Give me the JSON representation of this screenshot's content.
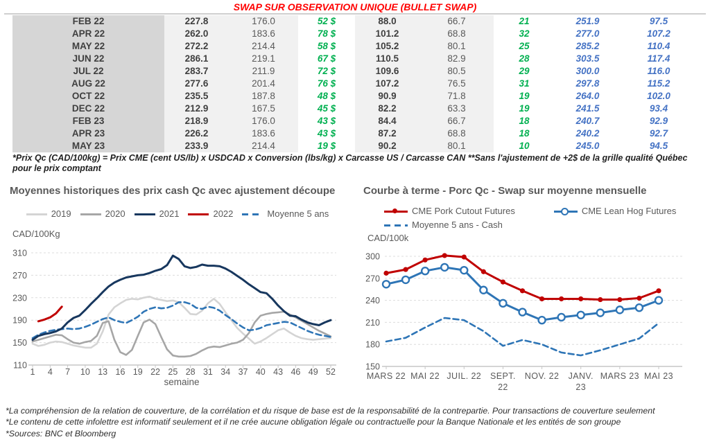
{
  "title": "SWAP SUR OBSERVATION UNIQUE (BULLET SWAP)",
  "table": {
    "rows": [
      [
        "FEB 22",
        "227.8",
        "176.0",
        "52 $",
        "88.0",
        "66.7",
        "21",
        "251.9",
        "97.5"
      ],
      [
        "APR 22",
        "262.0",
        "183.6",
        "78 $",
        "101.2",
        "68.8",
        "32",
        "277.0",
        "107.2"
      ],
      [
        "MAY 22",
        "272.2",
        "214.4",
        "58 $",
        "105.2",
        "80.1",
        "25",
        "285.2",
        "110.4"
      ],
      [
        "JUN 22",
        "286.1",
        "219.1",
        "67 $",
        "110.5",
        "82.9",
        "28",
        "303.5",
        "117.4"
      ],
      [
        "JUL 22",
        "283.7",
        "211.9",
        "72 $",
        "109.6",
        "80.5",
        "29",
        "300.0",
        "116.0"
      ],
      [
        "AUG 22",
        "277.6",
        "201.4",
        "76 $",
        "107.2",
        "76.5",
        "31",
        "297.8",
        "115.2"
      ],
      [
        "OCT 22",
        "235.5",
        "187.8",
        "48 $",
        "90.9",
        "71.8",
        "19",
        "264.0",
        "102.0"
      ],
      [
        "DEC 22",
        "212.9",
        "167.5",
        "45 $",
        "82.2",
        "63.3",
        "19",
        "241.5",
        "93.4"
      ],
      [
        "FEB 23",
        "218.9",
        "176.0",
        "43 $",
        "84.4",
        "66.7",
        "18",
        "240.7",
        "92.9"
      ],
      [
        "APR 23",
        "226.2",
        "183.6",
        "43 $",
        "87.2",
        "68.8",
        "18",
        "240.2",
        "92.7"
      ],
      [
        "MAY 23",
        "233.9",
        "214.4",
        "19 $",
        "90.2",
        "80.1",
        "10",
        "245.0",
        "94.5"
      ]
    ],
    "footnote": "*Prix Qc (CAD/100kg) = Prix CME (cent US/lb) x USDCAD x Conversion (lbs/kg) x Carcasse US / Carcasse CAN **Sans l'ajustement de +2$ de la grille qualité Québec pour le prix comptant"
  },
  "chart_data": [
    {
      "type": "line",
      "title": "Moyennes historiques des prix cash Qc avec ajustement découpe",
      "ylabel": "CAD/100Kg",
      "xlabel": "semaine",
      "ylim": [
        110,
        310
      ],
      "yticks": [
        110,
        150,
        190,
        230,
        270,
        310
      ],
      "xticks": [
        1,
        4,
        7,
        10,
        13,
        16,
        19,
        22,
        25,
        28,
        31,
        34,
        37,
        40,
        43,
        46,
        49,
        52
      ],
      "grid": "dashed-horizontal",
      "legend_position": "top",
      "series": [
        {
          "name": "2019",
          "color": "#d4d4d4",
          "dash": false,
          "x_start": 1,
          "values": [
            148,
            144,
            146,
            150,
            152,
            151,
            148,
            145,
            143,
            141,
            141,
            148,
            170,
            200,
            213,
            220,
            226,
            228,
            227,
            230,
            232,
            228,
            226,
            224,
            225,
            222,
            212,
            201,
            200,
            207,
            220,
            228,
            219,
            204,
            190,
            176,
            166,
            157,
            148,
            152,
            158,
            165,
            172,
            175,
            168,
            162,
            158,
            156,
            155,
            156,
            157,
            158
          ]
        },
        {
          "name": "2020",
          "color": "#a6a6a6",
          "dash": false,
          "x_start": 1,
          "values": [
            152,
            155,
            158,
            161,
            164,
            163,
            156,
            150,
            148,
            151,
            153,
            162,
            185,
            188,
            155,
            133,
            128,
            137,
            162,
            186,
            191,
            183,
            160,
            138,
            127,
            125,
            125,
            126,
            130,
            136,
            141,
            143,
            142,
            145,
            148,
            150,
            155,
            167,
            186,
            198,
            201,
            203,
            204,
            205,
            200,
            195,
            189,
            183,
            177,
            171,
            166,
            161
          ]
        },
        {
          "name": "2021",
          "color": "#17375e",
          "dash": false,
          "x_start": 1,
          "values": [
            155,
            162,
            165,
            167,
            170,
            175,
            186,
            194,
            198,
            208,
            219,
            229,
            240,
            250,
            257,
            262,
            266,
            268,
            270,
            271,
            274,
            278,
            281,
            288,
            305,
            299,
            286,
            283,
            285,
            289,
            287,
            287,
            286,
            282,
            276,
            269,
            262,
            254,
            247,
            240,
            238,
            228,
            216,
            206,
            198,
            197,
            191,
            186,
            183,
            181,
            186,
            190
          ]
        },
        {
          "name": "2022",
          "color": "#c00000",
          "dash": false,
          "x_start": 2,
          "values": [
            188,
            191,
            195,
            202,
            214
          ]
        },
        {
          "name": "Moyenne 5 ans",
          "color": "#2e75b6",
          "dash": true,
          "x_start": 1,
          "values": [
            158,
            164,
            168,
            171,
            173,
            174,
            175,
            174,
            175,
            178,
            182,
            187,
            192,
            195,
            190,
            187,
            185,
            190,
            196,
            205,
            210,
            213,
            211,
            212,
            216,
            222,
            222,
            219,
            212,
            210,
            214,
            212,
            207,
            199,
            192,
            184,
            177,
            172,
            173,
            176,
            181,
            183,
            185,
            187,
            186,
            181,
            176,
            171,
            167,
            164,
            162,
            160
          ]
        }
      ]
    },
    {
      "type": "line",
      "title": "Courbe à terme - Porc Qc - Swap sur moyenne mensuelle",
      "ylabel": "CAD/100k",
      "ylim": [
        150,
        300
      ],
      "yticks": [
        150,
        180,
        210,
        240,
        270,
        300
      ],
      "points_count": 15,
      "xtick_labels": [
        {
          "index": 0,
          "line1": "MARS 22",
          "line2": ""
        },
        {
          "index": 2,
          "line1": "MAI 22",
          "line2": ""
        },
        {
          "index": 4,
          "line1": "JUIL. 22",
          "line2": ""
        },
        {
          "index": 6,
          "line1": "SEPT.",
          "line2": "22"
        },
        {
          "index": 8,
          "line1": "NOV. 22",
          "line2": ""
        },
        {
          "index": 10,
          "line1": "JANV.",
          "line2": "23"
        },
        {
          "index": 12,
          "line1": "MARS 23",
          "line2": ""
        },
        {
          "index": 14,
          "line1": "MAI 23",
          "line2": ""
        }
      ],
      "grid": "dashed-horizontal",
      "legend_position": "top",
      "series": [
        {
          "name": "CME Pork Cutout Futures",
          "color": "#c00000",
          "dash": false,
          "marker": "filled",
          "values": [
            277,
            282,
            295,
            301,
            299,
            279,
            265,
            253,
            242,
            242,
            242,
            241,
            241,
            243,
            253
          ]
        },
        {
          "name": "CME Lean Hog Futures",
          "color": "#2e75b6",
          "dash": false,
          "marker": "open",
          "values": [
            262,
            268,
            280,
            285,
            281,
            254,
            236,
            224,
            213,
            217,
            220,
            223,
            227,
            230,
            240
          ]
        },
        {
          "name": "Moyenne 5 ans - Cash",
          "color": "#2e75b6",
          "dash": true,
          "values": [
            184,
            189,
            203,
            216,
            213,
            198,
            178,
            186,
            180,
            169,
            165,
            172,
            180,
            188,
            209
          ]
        }
      ]
    }
  ],
  "footer": {
    "lines": [
      "*La compréhension de la relation de couverture, de la corrélation et du risque de base est de la responsabilité de la contrepartie. Pour transactions de couverture seulement",
      "*Le contenu de cette infolettre est informatif seulement et il ne crée aucune obligation légale ou contractuelle pour la Banque Nationale et les entités de son groupe",
      "*Sources: BNC et Bloomberg"
    ]
  },
  "colors": {
    "title_red": "#ff0000",
    "green_value": "#00b050",
    "blue_value": "#4472c4",
    "navy_2021": "#17375e",
    "red_series": "#c00000",
    "steel_blue": "#2e75b6",
    "gray_text": "#595959",
    "month_col_bg": "#d6d6d6",
    "num_col_bg": "#f1f1f1"
  }
}
